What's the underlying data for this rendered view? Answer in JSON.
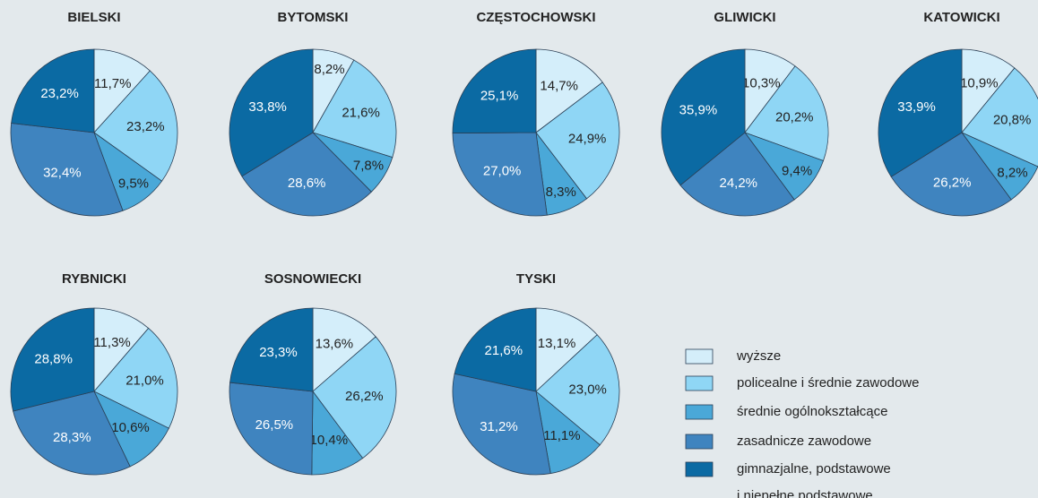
{
  "legend": {
    "labels": [
      "wyższe",
      "policealne i średnie zawodowe",
      "średnie ogólnokształcące",
      "zasadnicze zawodowe",
      "gimnazjalne, podstawowe\ni niepełne podstawowe"
    ],
    "colors": [
      "#d4eefa",
      "#8fd6f5",
      "#4aa8d8",
      "#3f84bf",
      "#0b6aa3"
    ]
  },
  "chart_data": [
    {
      "type": "pie",
      "title": "BIELSKI",
      "values": [
        11.7,
        23.2,
        9.5,
        32.4,
        23.2
      ],
      "value_labels": [
        "11,7%",
        "23,2%",
        "9,5%",
        "32,4%",
        "23,2%"
      ]
    },
    {
      "type": "pie",
      "title": "BYTOMSKI",
      "values": [
        8.2,
        21.6,
        7.8,
        28.6,
        33.8
      ],
      "value_labels": [
        "8,2%",
        "21,6%",
        "7,8%",
        "28,6%",
        "33,8%"
      ]
    },
    {
      "type": "pie",
      "title": "CZĘSTOCHOWSKI",
      "values": [
        14.7,
        24.9,
        8.3,
        27.0,
        25.1
      ],
      "value_labels": [
        "14,7%",
        "24,9%",
        "8,3%",
        "27,0%",
        "25,1%"
      ]
    },
    {
      "type": "pie",
      "title": "GLIWICKI",
      "values": [
        10.3,
        20.2,
        9.4,
        24.2,
        35.9
      ],
      "value_labels": [
        "10,3%",
        "20,2%",
        "9,4%",
        "24,2%",
        "35,9%"
      ]
    },
    {
      "type": "pie",
      "title": "KATOWICKI",
      "values": [
        10.9,
        20.8,
        8.2,
        26.2,
        33.9
      ],
      "value_labels": [
        "10,9%",
        "20,8%",
        "8,2%",
        "26,2%",
        "33,9%"
      ]
    },
    {
      "type": "pie",
      "title": "RYBNICKI",
      "values": [
        11.3,
        21.0,
        10.6,
        28.3,
        28.8
      ],
      "value_labels": [
        "11,3%",
        "21,0%",
        "10,6%",
        "28,3%",
        "28,8%"
      ]
    },
    {
      "type": "pie",
      "title": "SOSNOWIECKI",
      "values": [
        13.6,
        26.2,
        10.4,
        26.5,
        23.3
      ],
      "value_labels": [
        "13,6%",
        "26,2%",
        "10,4%",
        "26,5%",
        "23,3%"
      ]
    },
    {
      "type": "pie",
      "title": "TYSKI",
      "values": [
        13.1,
        23.0,
        11.1,
        31.2,
        21.6
      ],
      "value_labels": [
        "13,1%",
        "23,0%",
        "11,1%",
        "31,2%",
        "21,6%"
      ]
    }
  ]
}
